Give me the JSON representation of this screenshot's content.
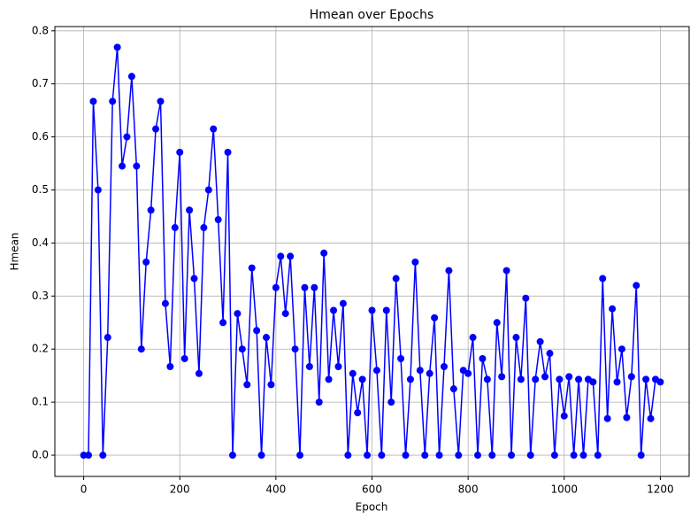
{
  "chart_data": {
    "type": "line",
    "title": "Hmean over Epochs",
    "x_label": "Epoch",
    "y_label": "Hmean",
    "x": [
      0,
      10,
      20,
      30,
      40,
      50,
      60,
      70,
      80,
      90,
      100,
      110,
      120,
      130,
      140,
      150,
      160,
      170,
      180,
      190,
      200,
      210,
      220,
      230,
      240,
      250,
      260,
      270,
      280,
      290,
      300,
      310,
      320,
      330,
      340,
      350,
      360,
      370,
      380,
      390,
      400,
      410,
      420,
      430,
      440,
      450,
      460,
      470,
      480,
      490,
      500,
      510,
      520,
      530,
      540,
      550,
      560,
      570,
      580,
      590,
      600,
      610,
      620,
      630,
      640,
      650,
      660,
      670,
      680,
      690,
      700,
      710,
      720,
      730,
      740,
      750,
      760,
      770,
      780,
      790,
      800,
      810,
      820,
      830,
      840,
      850,
      860,
      870,
      880,
      890,
      900,
      910,
      920,
      930,
      940,
      950,
      960,
      970,
      980,
      990,
      1000,
      1010,
      1020,
      1030,
      1040,
      1050,
      1060,
      1070,
      1080,
      1090,
      1100,
      1110,
      1120,
      1130,
      1140,
      1150,
      1160,
      1170,
      1180,
      1190,
      1200
    ],
    "series": [
      {
        "name": "Hmean",
        "color": "#0000ff",
        "values": [
          0,
          0,
          0.667,
          0.5,
          0,
          0.222,
          0.667,
          0.769,
          0.545,
          0.6,
          0.714,
          0.545,
          0.2,
          0.364,
          0.462,
          0.615,
          0.667,
          0.286,
          0.167,
          0.429,
          0.571,
          0.182,
          0.462,
          0.333,
          0.154,
          0.429,
          0.5,
          0.615,
          0.444,
          0.25,
          0.571,
          0,
          0.267,
          0.2,
          0.133,
          0.353,
          0.235,
          0,
          0.222,
          0.133,
          0.316,
          0.375,
          0.267,
          0.375,
          0.2,
          0,
          0.316,
          0.167,
          0.316,
          0.1,
          0.381,
          0.143,
          0.273,
          0.167,
          0.286,
          0,
          0.154,
          0.08,
          0.143,
          0,
          0.273,
          0.16,
          0,
          0.273,
          0.1,
          0.333,
          0.182,
          0,
          0.143,
          0.364,
          0.16,
          0,
          0.154,
          0.259,
          0,
          0.167,
          0.348,
          0.125,
          0,
          0.16,
          0.154,
          0.222,
          0,
          0.182,
          0.143,
          0,
          0.25,
          0.148,
          0.348,
          0,
          0.222,
          0.143,
          0.296,
          0,
          0.143,
          0.214,
          0.148,
          0.192,
          0,
          0.143,
          0.074,
          0.148,
          0,
          0.143,
          0,
          0.143,
          0.138,
          0,
          0.333,
          0.069,
          0.276,
          0.138,
          0.2,
          0.071,
          0.148,
          0.32,
          0,
          0.143,
          0.069,
          0.143,
          0.138
        ]
      }
    ],
    "xlim": [
      -60,
      1260
    ],
    "ylim": [
      -0.04,
      0.808
    ],
    "xticks": [
      0,
      200,
      400,
      600,
      800,
      1000,
      1200
    ],
    "yticks": [
      {
        "value": 0,
        "label": "0.0"
      },
      0.1,
      0.2,
      0.3,
      0.4,
      0.5,
      0.6,
      0.7,
      0.8
    ],
    "grid": true
  }
}
